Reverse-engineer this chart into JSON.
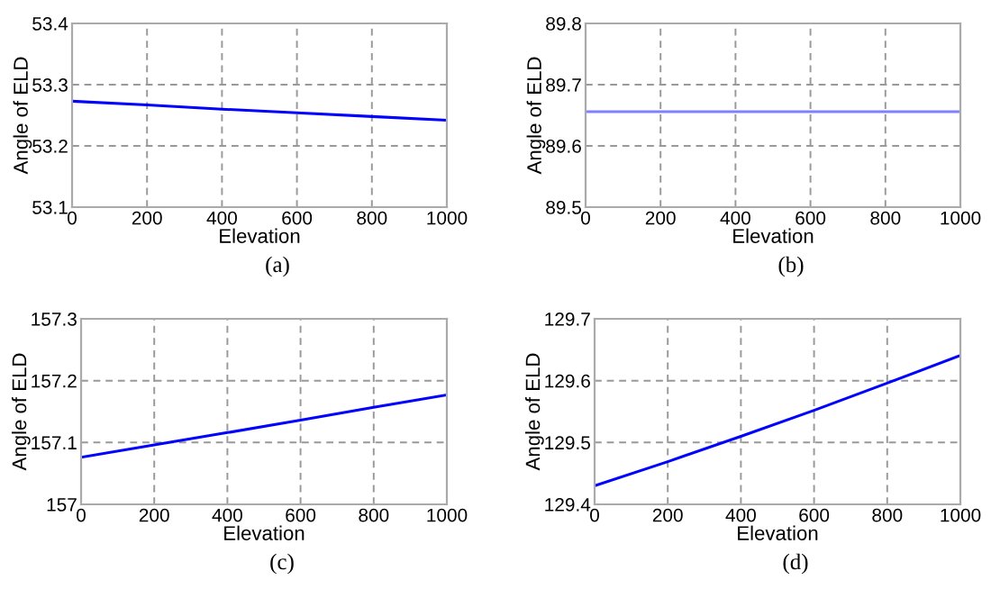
{
  "chart_data": [
    {
      "type": "line",
      "xlabel": "Elevation",
      "ylabel": "Angle of ELD",
      "annotations": [
        "(a)"
      ],
      "x": [
        0,
        200,
        400,
        600,
        800,
        1000
      ],
      "series": [
        {
          "color": "#0000ff",
          "values": [
            53.273,
            53.267,
            53.26,
            53.254,
            53.248,
            53.242
          ]
        }
      ],
      "xlim": [
        0,
        1000
      ],
      "ylim": [
        53.1,
        53.4
      ],
      "xticks": [
        0,
        200,
        400,
        600,
        800,
        1000
      ],
      "yticks": [
        53.1,
        53.2,
        53.3,
        53.4
      ],
      "grid": true,
      "line_style": "solid"
    },
    {
      "type": "line",
      "xlabel": "Elevation",
      "ylabel": "Angle of ELD",
      "annotations": [
        "(b)"
      ],
      "x": [
        0,
        1000
      ],
      "series": [
        {
          "color": "#8080ff",
          "values": [
            89.656,
            89.656
          ]
        }
      ],
      "xlim": [
        0,
        1000
      ],
      "ylim": [
        89.5,
        89.8
      ],
      "xticks": [
        0,
        200,
        400,
        600,
        800,
        1000
      ],
      "yticks": [
        89.5,
        89.6,
        89.7,
        89.8
      ],
      "grid": true,
      "line_style": "solid"
    },
    {
      "type": "line",
      "xlabel": "Elevation",
      "ylabel": "Angle of ELD",
      "annotations": [
        "(c)"
      ],
      "x": [
        0,
        200,
        400,
        600,
        800,
        1000
      ],
      "series": [
        {
          "color": "#0000ff",
          "values": [
            157.076,
            157.096,
            157.116,
            157.136,
            157.157,
            157.177
          ]
        }
      ],
      "xlim": [
        0,
        1000
      ],
      "ylim": [
        157,
        157.3
      ],
      "xticks": [
        0,
        200,
        400,
        600,
        800,
        1000
      ],
      "yticks": [
        157,
        157.1,
        157.2,
        157.3
      ],
      "grid": true,
      "line_style": "solid"
    },
    {
      "type": "line",
      "xlabel": "Elevation",
      "ylabel": "Angle of ELD",
      "annotations": [
        "(d)"
      ],
      "x": [
        0,
        200,
        400,
        600,
        800,
        1000
      ],
      "series": [
        {
          "color": "#0000ff",
          "values": [
            129.43,
            129.469,
            129.51,
            129.552,
            129.596,
            129.641
          ]
        }
      ],
      "xlim": [
        0,
        1000
      ],
      "ylim": [
        129.4,
        129.7
      ],
      "xticks": [
        0,
        200,
        400,
        600,
        800,
        1000
      ],
      "yticks": [
        129.4,
        129.5,
        129.6,
        129.7
      ],
      "grid": true,
      "line_style": "solid"
    }
  ]
}
